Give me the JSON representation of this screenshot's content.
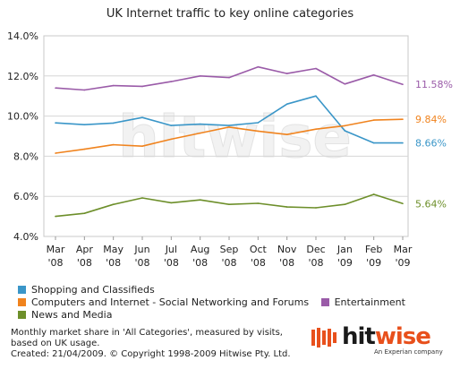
{
  "chart_data": {
    "type": "line",
    "title": "UK Internet traffic to key online categories",
    "categories": [
      "Mar '08",
      "Apr '08",
      "May '08",
      "Jun '08",
      "Jul '08",
      "Aug '08",
      "Sep '08",
      "Oct '08",
      "Nov '08",
      "Dec '08",
      "Jan '09",
      "Feb '09",
      "Mar '09"
    ],
    "x_ticks": [
      {
        "top": "Mar",
        "bottom": "'08"
      },
      {
        "top": "Apr",
        "bottom": "'08"
      },
      {
        "top": "May",
        "bottom": "'08"
      },
      {
        "top": "Jun",
        "bottom": "'08"
      },
      {
        "top": "Jul",
        "bottom": "'08"
      },
      {
        "top": "Aug",
        "bottom": "'08"
      },
      {
        "top": "Sep",
        "bottom": "'08"
      },
      {
        "top": "Oct",
        "bottom": "'08"
      },
      {
        "top": "Nov",
        "bottom": "'08"
      },
      {
        "top": "Dec",
        "bottom": "'08"
      },
      {
        "top": "Jan",
        "bottom": "'09"
      },
      {
        "top": "Feb",
        "bottom": "'09"
      },
      {
        "top": "Mar",
        "bottom": "'09"
      }
    ],
    "y_ticks": [
      "4.0%",
      "6.0%",
      "8.0%",
      "10.0%",
      "12.0%",
      "14.0%"
    ],
    "ylim": [
      4,
      14
    ],
    "grid": true,
    "series": [
      {
        "name": "Shopping and Classifieds",
        "color": "#3a96c8",
        "values": [
          9.66,
          9.57,
          9.65,
          9.93,
          9.53,
          9.6,
          9.53,
          9.67,
          10.6,
          11.0,
          9.27,
          8.66,
          8.66
        ],
        "end_label": "8.66%"
      },
      {
        "name": "Computers and Internet - Social Networking and Forums",
        "color": "#f0831e",
        "values": [
          8.15,
          8.35,
          8.57,
          8.5,
          8.85,
          9.15,
          9.45,
          9.25,
          9.08,
          9.35,
          9.52,
          9.8,
          9.84
        ],
        "end_label": "9.84%"
      },
      {
        "name": "Entertainment",
        "color": "#9a5ba8",
        "values": [
          11.4,
          11.3,
          11.52,
          11.48,
          11.72,
          12.0,
          11.92,
          12.45,
          12.12,
          12.37,
          11.6,
          12.05,
          11.58
        ],
        "end_label": "11.58%"
      },
      {
        "name": "News and Media",
        "color": "#6d8f2a",
        "values": [
          5.0,
          5.15,
          5.6,
          5.92,
          5.68,
          5.82,
          5.6,
          5.65,
          5.47,
          5.43,
          5.6,
          6.1,
          5.64
        ],
        "end_label": "5.64%"
      }
    ]
  },
  "legend": {
    "row1": [
      0
    ],
    "row2": [
      1,
      2
    ],
    "row3": [
      3
    ]
  },
  "watermark": "hitwise",
  "footer": {
    "line1": "Monthly market share in 'All Categories', measured by visits,",
    "line2": "based on UK usage.",
    "line3": "Created: 21/04/2009. © Copyright 1998-2009 Hitwise Pty. Ltd."
  },
  "logo": {
    "word_a": "hit",
    "word_b": "wise",
    "tagline": "An Experian company",
    "colors": {
      "accent": "#e8501c",
      "dark": "#1a1a1a"
    }
  }
}
